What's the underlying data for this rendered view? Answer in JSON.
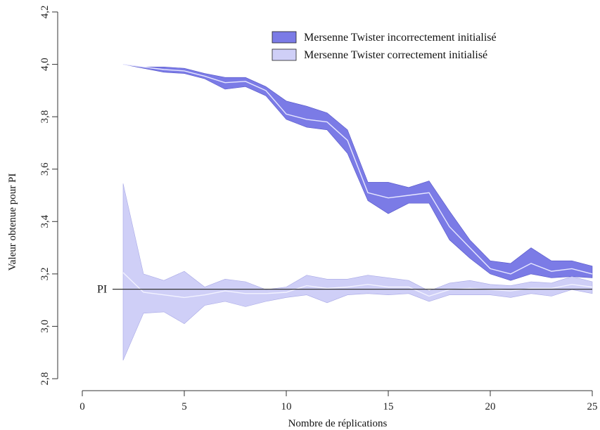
{
  "chart_data": {
    "type": "area",
    "xlabel": "Nombre de réplications",
    "ylabel": "Valeur obtenue pour PI",
    "xlim": [
      0,
      25
    ],
    "ylim": [
      2.8,
      4.2
    ],
    "x_ticks": [
      "0",
      "5",
      "10",
      "15",
      "20",
      "25"
    ],
    "x_tick_values": [
      0,
      5,
      10,
      15,
      20,
      25
    ],
    "y_ticks": [
      "2,8",
      "3,0",
      "3,2",
      "3,4",
      "3,6",
      "3,8",
      "4,0",
      "4,2"
    ],
    "y_tick_values": [
      2.8,
      3.0,
      3.2,
      3.4,
      3.6,
      3.8,
      4.0,
      4.2
    ],
    "grid": false,
    "legend_position": "top-right",
    "reference_line": {
      "label": "PI",
      "value": 3.14159
    },
    "x": [
      2,
      3,
      4,
      5,
      6,
      7,
      8,
      9,
      10,
      11,
      12,
      13,
      14,
      15,
      16,
      17,
      18,
      19,
      20,
      21,
      22,
      23,
      24,
      25
    ],
    "series": [
      {
        "name": "Mersenne Twister incorrectement initialisé",
        "fill_color": "#7b7be6",
        "mean_color": "#e8e8ff",
        "mean": [
          4.0,
          3.99,
          3.98,
          3.975,
          3.955,
          3.93,
          3.935,
          3.9,
          3.81,
          3.79,
          3.78,
          3.71,
          3.51,
          3.49,
          3.5,
          3.51,
          3.38,
          3.3,
          3.22,
          3.2,
          3.24,
          3.21,
          3.22,
          3.2
        ],
        "upper": [
          4.0,
          3.99,
          3.99,
          3.985,
          3.965,
          3.95,
          3.95,
          3.915,
          3.86,
          3.84,
          3.815,
          3.75,
          3.55,
          3.55,
          3.53,
          3.555,
          3.44,
          3.33,
          3.25,
          3.24,
          3.3,
          3.25,
          3.25,
          3.23
        ],
        "lower": [
          4.0,
          3.985,
          3.97,
          3.965,
          3.945,
          3.905,
          3.915,
          3.88,
          3.79,
          3.76,
          3.75,
          3.66,
          3.48,
          3.43,
          3.47,
          3.47,
          3.33,
          3.26,
          3.2,
          3.175,
          3.2,
          3.185,
          3.19,
          3.185
        ]
      },
      {
        "name": "Mersenne Twister correctement initialisé",
        "fill_color": "#cfcff7",
        "mean_color": "#f2f2ff",
        "mean": [
          3.205,
          3.13,
          3.12,
          3.11,
          3.12,
          3.135,
          3.125,
          3.125,
          3.13,
          3.155,
          3.145,
          3.15,
          3.16,
          3.15,
          3.15,
          3.115,
          3.14,
          3.145,
          3.14,
          3.135,
          3.145,
          3.145,
          3.16,
          3.15
        ],
        "upper": [
          3.545,
          3.2,
          3.175,
          3.21,
          3.15,
          3.18,
          3.17,
          3.14,
          3.15,
          3.195,
          3.18,
          3.18,
          3.195,
          3.185,
          3.175,
          3.135,
          3.165,
          3.175,
          3.16,
          3.155,
          3.17,
          3.165,
          3.19,
          3.17
        ],
        "lower": [
          2.87,
          3.05,
          3.055,
          3.01,
          3.08,
          3.095,
          3.075,
          3.095,
          3.11,
          3.12,
          3.09,
          3.12,
          3.125,
          3.12,
          3.125,
          3.095,
          3.12,
          3.12,
          3.12,
          3.11,
          3.125,
          3.115,
          3.14,
          3.125
        ]
      }
    ]
  }
}
